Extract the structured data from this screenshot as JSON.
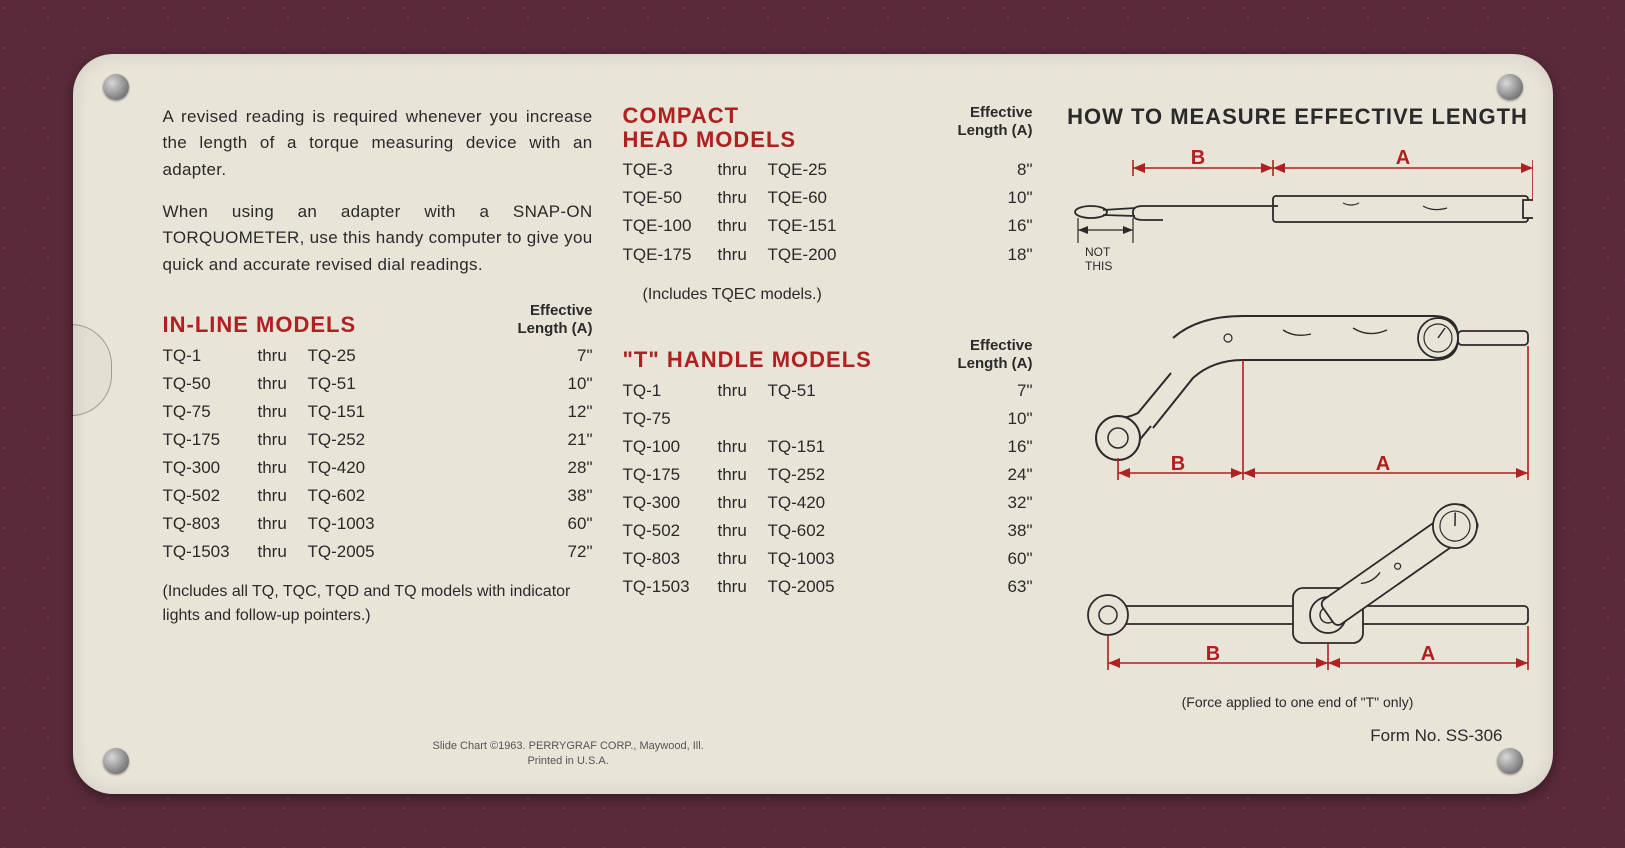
{
  "colors": {
    "card_bg": "#e8e4d8",
    "text": "#2a2a2a",
    "accent_red": "#b02020",
    "page_bg": "#5a2a3a"
  },
  "typography": {
    "body_size_pt": 13,
    "heading_size_pt": 16,
    "font_family": "Helvetica"
  },
  "intro": {
    "p1": "A revised reading is required whenever you increase the length of a torque measuring device with an adapter.",
    "p2": "When using an adapter with a SNAP-ON TORQUOMETER, use this handy computer to give you quick and accurate revised dial readings."
  },
  "effective_length_header": {
    "line1": "Effective",
    "line2": "Length (A)"
  },
  "inline": {
    "title": "IN-LINE MODELS",
    "rows": [
      {
        "a": "TQ-1",
        "thru": "thru",
        "b": "TQ-25",
        "len": "7\""
      },
      {
        "a": "TQ-50",
        "thru": "thru",
        "b": "TQ-51",
        "len": "10\""
      },
      {
        "a": "TQ-75",
        "thru": "thru",
        "b": "TQ-151",
        "len": "12\""
      },
      {
        "a": "TQ-175",
        "thru": "thru",
        "b": "TQ-252",
        "len": "21\""
      },
      {
        "a": "TQ-300",
        "thru": "thru",
        "b": "TQ-420",
        "len": "28\""
      },
      {
        "a": "TQ-502",
        "thru": "thru",
        "b": "TQ-602",
        "len": "38\""
      },
      {
        "a": "TQ-803",
        "thru": "thru",
        "b": "TQ-1003",
        "len": "60\""
      },
      {
        "a": "TQ-1503",
        "thru": "thru",
        "b": "TQ-2005",
        "len": "72\""
      }
    ],
    "note": "(Includes all TQ, TQC, TQD and TQ models with indicator lights and follow-up pointers.)"
  },
  "compact": {
    "title": "COMPACT HEAD MODELS",
    "rows": [
      {
        "a": "TQE-3",
        "thru": "thru",
        "b": "TQE-25",
        "len": "8\""
      },
      {
        "a": "TQE-50",
        "thru": "thru",
        "b": "TQE-60",
        "len": "10\""
      },
      {
        "a": "TQE-100",
        "thru": "thru",
        "b": "TQE-151",
        "len": "16\""
      },
      {
        "a": "TQE-175",
        "thru": "thru",
        "b": "TQE-200",
        "len": "18\""
      }
    ],
    "note": "(Includes TQEC models.)"
  },
  "thandle": {
    "title": "\"T\" HANDLE MODELS",
    "rows": [
      {
        "a": "TQ-1",
        "thru": "thru",
        "b": "TQ-51",
        "len": "7\""
      },
      {
        "a": "TQ-75",
        "thru": "",
        "b": "",
        "len": "10\""
      },
      {
        "a": "TQ-100",
        "thru": "thru",
        "b": "TQ-151",
        "len": "16\""
      },
      {
        "a": "TQ-175",
        "thru": "thru",
        "b": "TQ-252",
        "len": "24\""
      },
      {
        "a": "TQ-300",
        "thru": "thru",
        "b": "TQ-420",
        "len": "32\""
      },
      {
        "a": "TQ-502",
        "thru": "thru",
        "b": "TQ-602",
        "len": "38\""
      },
      {
        "a": "TQ-803",
        "thru": "thru",
        "b": "TQ-1003",
        "len": "60\""
      },
      {
        "a": "TQ-1503",
        "thru": "thru",
        "b": "TQ-2005",
        "len": "63\""
      }
    ]
  },
  "diagram": {
    "title": "HOW TO MEASURE EFFECTIVE LENGTH",
    "label_A": "A",
    "label_B": "B",
    "not_this": "NOT\nTHIS",
    "caption": "(Force applied to one end of \"T\" only)"
  },
  "form_no": "Form No. SS-306",
  "copyright": {
    "line1": "Slide Chart ©1963. PERRYGRAF CORP., Maywood, Ill.",
    "line2": "Printed in U.S.A."
  }
}
